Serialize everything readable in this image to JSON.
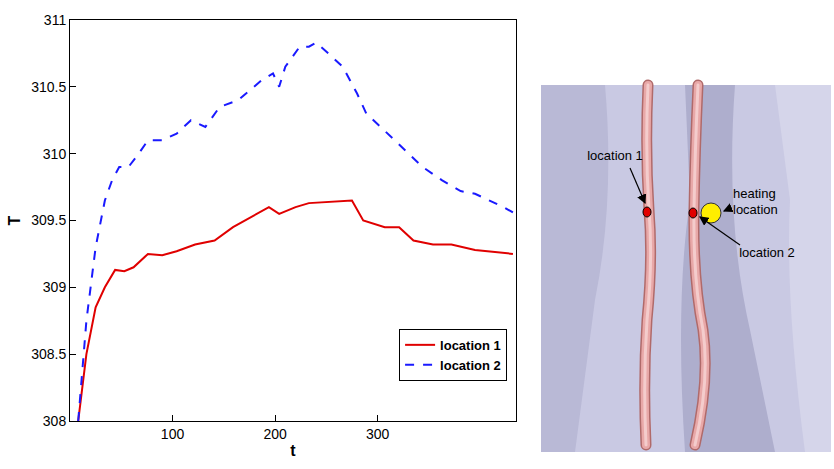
{
  "chart_data": {
    "type": "line",
    "x_label": "t",
    "y_label": "T",
    "xlim": [
      0,
      435
    ],
    "xticks": [
      100,
      200,
      300
    ],
    "ylim": [
      308,
      311
    ],
    "yticks": [
      308,
      308.5,
      309,
      309.5,
      310,
      310.5,
      311
    ],
    "grid": false,
    "legend": "lower right",
    "series": [
      {
        "name": "location 1",
        "color": "#e00000",
        "line_style": "solid",
        "x": [
          8,
          16,
          25,
          34,
          44,
          53,
          62,
          76,
          90,
          104,
          122,
          141,
          159,
          178,
          194,
          204,
          220,
          233,
          252,
          275,
          286,
          307,
          321,
          335,
          354,
          372,
          395,
          418,
          432
        ],
        "values": [
          308.0,
          308.5,
          308.85,
          309.0,
          309.13,
          309.12,
          309.15,
          309.25,
          309.24,
          309.27,
          309.32,
          309.35,
          309.45,
          309.53,
          309.6,
          309.55,
          309.6,
          309.63,
          309.64,
          309.65,
          309.5,
          309.45,
          309.45,
          309.35,
          309.32,
          309.32,
          309.28,
          309.26,
          309.25
        ]
      },
      {
        "name": "location 2",
        "color": "#1a1aff",
        "line_style": "dashed",
        "x": [
          8,
          16,
          25,
          34,
          41,
          48,
          57,
          67,
          76,
          90,
          104,
          118,
          132,
          146,
          164,
          187,
          198,
          204,
          210,
          224,
          233,
          240,
          252,
          266,
          280,
          289,
          303,
          317,
          331,
          344,
          363,
          381,
          395,
          409,
          423,
          432
        ],
        "values": [
          308.0,
          308.75,
          309.3,
          309.65,
          309.8,
          309.9,
          309.9,
          310.0,
          310.1,
          310.1,
          310.15,
          310.25,
          310.2,
          310.35,
          310.4,
          310.55,
          310.6,
          310.5,
          310.65,
          310.8,
          310.8,
          310.83,
          310.75,
          310.65,
          310.45,
          310.3,
          310.2,
          310.1,
          310.0,
          309.9,
          309.8,
          309.72,
          309.7,
          309.65,
          309.6,
          309.56
        ]
      }
    ]
  },
  "diagram": {
    "labels": {
      "location_1": "location 1",
      "location_2": "location 2",
      "heating": "heating location"
    }
  }
}
